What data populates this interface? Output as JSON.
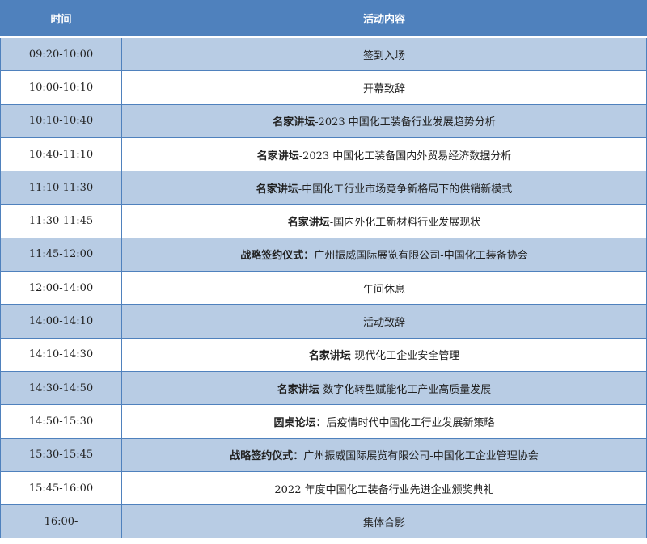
{
  "colors": {
    "header": "#4f81bd",
    "alt_row": "#b8cce4",
    "border": "#4f81bd"
  },
  "table": {
    "headers": [
      "时间",
      "活动内容"
    ],
    "rows": [
      {
        "time": "09:20-10:00",
        "bold": "",
        "text": "签到入场"
      },
      {
        "time": "10:00-10:10",
        "bold": "",
        "text": "开幕致辞"
      },
      {
        "time": "10:10-10:40",
        "bold": "名家讲坛",
        "text": "-2023 中国化工装备行业发展趋势分析"
      },
      {
        "time": "10:40-11:10",
        "bold": "名家讲坛",
        "text": "-2023 中国化工装备国内外贸易经济数据分析"
      },
      {
        "time": "11:10-11:30",
        "bold": "名家讲坛",
        "text": "-中国化工行业市场竞争新格局下的供销新模式"
      },
      {
        "time": "11:30-11:45",
        "bold": "名家讲坛",
        "text": "-国内外化工新材料行业发展现状"
      },
      {
        "time": "11:45-12:00",
        "bold": "战略签约仪式：",
        "text": "广州振威国际展览有限公司-中国化工装备协会"
      },
      {
        "time": "12:00-14:00",
        "bold": "",
        "text": "午间休息"
      },
      {
        "time": "14:00-14:10",
        "bold": "",
        "text": "活动致辞"
      },
      {
        "time": "14:10-14:30",
        "bold": "名家讲坛",
        "text": "-现代化工企业安全管理"
      },
      {
        "time": "14:30-14:50",
        "bold": "名家讲坛",
        "text": "-数字化转型赋能化工产业高质量发展"
      },
      {
        "time": "14:50-15:30",
        "bold": "圆桌论坛：",
        "text": "后疫情时代中国化工行业发展新策略"
      },
      {
        "time": "15:30-15:45",
        "bold": "战略签约仪式：",
        "text": "广州振威国际展览有限公司-中国化工企业管理协会"
      },
      {
        "time": "15:45-16:00",
        "bold": "",
        "text": "2022 年度中国化工装备行业先进企业颁奖典礼"
      },
      {
        "time": "16:00-",
        "bold": "",
        "text": "集体合影"
      }
    ]
  }
}
